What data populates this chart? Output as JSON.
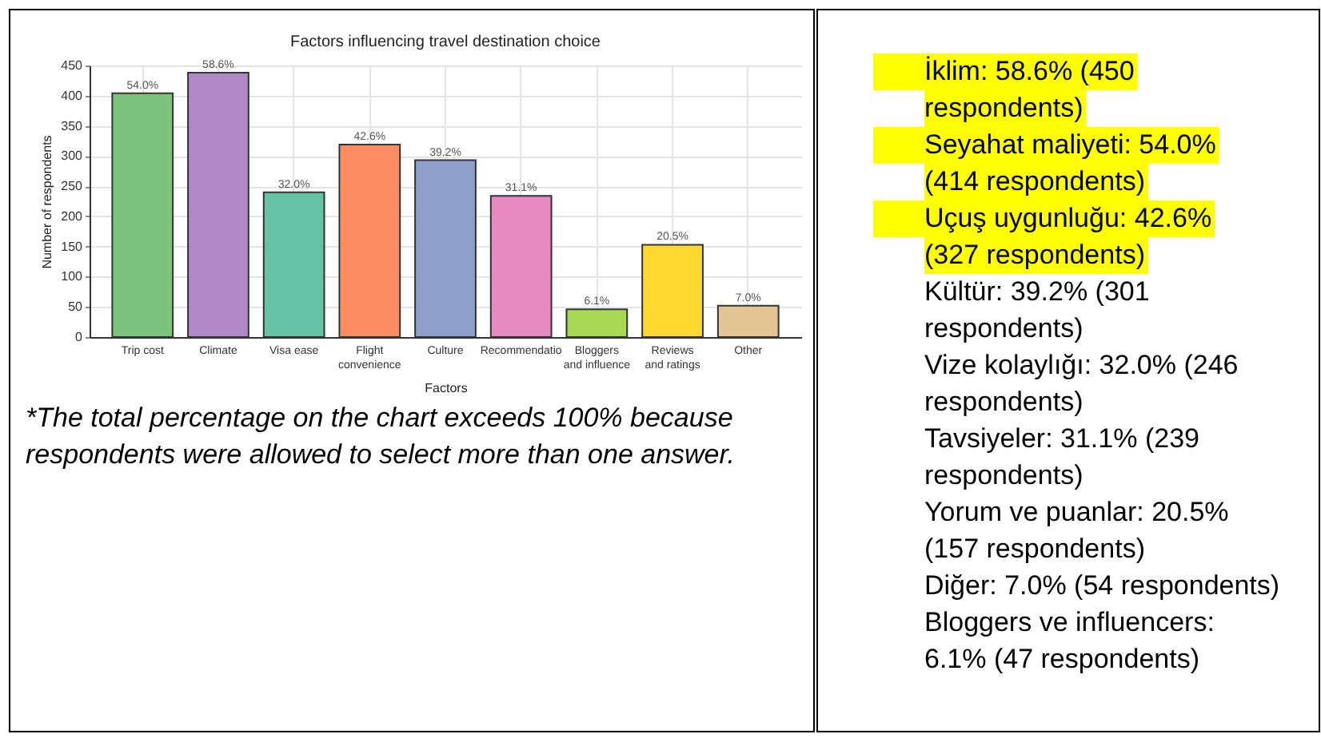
{
  "chart_data": [
    {
      "type": "bar",
      "title": "Factors influencing travel destination choice",
      "xlabel": "Factors",
      "ylabel": "Number of respondents",
      "categories": [
        "Trip cost",
        "Climate",
        "Visa ease",
        "Flight convenience",
        "Culture",
        "Recommendatio",
        "Bloggers and influence",
        "Reviews and ratings",
        "Other"
      ],
      "values": [
        404,
        438,
        240,
        319,
        293,
        234,
        46,
        153,
        52
      ],
      "colors": [
        "#7cc47e",
        "#b088c8",
        "#66c2a5",
        "#fc8d62",
        "#8da0cb",
        "#e78ac3",
        "#a6d854",
        "#ffd92f",
        "#e5c494"
      ],
      "ylim": [
        0,
        450
      ],
      "yticks": [
        0,
        50,
        100,
        150,
        200,
        250,
        300,
        350,
        400,
        450
      ],
      "grid": true,
      "annotations": [
        {
          "text": "54.0%",
          "x": "Trip cost",
          "y": 404
        },
        {
          "text": "58.6%",
          "x": "Climate",
          "y": 438
        },
        {
          "text": "32.0%",
          "x": "Visa ease",
          "y": 240
        },
        {
          "text": "42.6%",
          "x": "Flight convenience",
          "y": 319
        },
        {
          "text": "39.2%",
          "x": "Culture",
          "y": 293
        },
        {
          "text": "31.1%",
          "x": "Recommendatio",
          "y": 234
        },
        {
          "text": "6.1%",
          "x": "Bloggers and influence",
          "y": 46
        },
        {
          "text": "20.5%",
          "x": "Reviews and ratings",
          "y": 153
        },
        {
          "text": "7.0%",
          "x": "Other",
          "y": 52
        },
        "*The total percentage on the chart exceeds 100% because respondents were allowed to select more than one answer."
      ]
    },
    {
      "type": "other",
      "annotations": [
        "İklim: 58.6% (450 respondents)",
        "Seyahat maliyeti: 54.0% (414 respondents)",
        "Uçuş uygunluğu: 42.6% (327 respondents)",
        "Kültür: 39.2% (301 respondents)",
        "Vize kolaylığı: 32.0% (246 respondents)",
        "Tavsiyeler: 31.1% (239 respondents)",
        "Yorum ve puanlar: 20.5% (157 respondents)",
        "Diğer: 7.0% (54 respondents)",
        "Bloggers ve influencers: 6.1% (47 respondents)"
      ],
      "colors": [
        "#ffff00",
        "#ffff00",
        "#ffff00",
        null,
        null,
        null,
        null,
        null,
        null
      ]
    }
  ]
}
